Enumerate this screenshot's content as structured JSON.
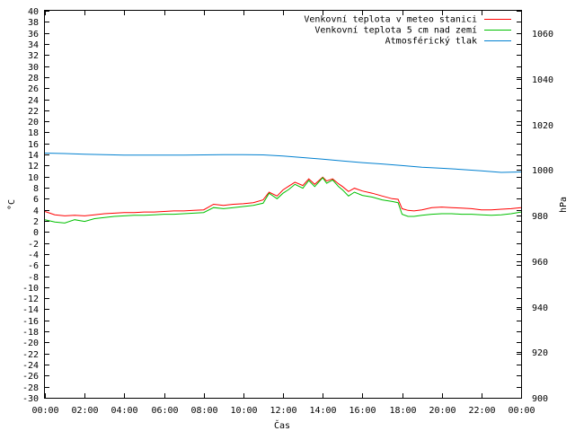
{
  "chart_data": {
    "type": "line",
    "xlabel": "Čas",
    "ylabel": "°C",
    "y2label": "hPa",
    "x_ticks": [
      "00:00",
      "02:00",
      "04:00",
      "06:00",
      "08:00",
      "10:00",
      "12:00",
      "14:00",
      "16:00",
      "18:00",
      "20:00",
      "22:00",
      "00:00"
    ],
    "xlim": [
      0,
      24
    ],
    "ylim": [
      -30,
      40
    ],
    "y2lim": [
      900,
      1070
    ],
    "y_ticks": [
      40,
      38,
      36,
      34,
      32,
      30,
      28,
      26,
      24,
      22,
      20,
      18,
      16,
      14,
      12,
      10,
      8,
      6,
      4,
      2,
      0,
      -2,
      -4,
      -6,
      -8,
      -10,
      -12,
      -14,
      -16,
      -18,
      -20,
      -22,
      -24,
      -26,
      -28,
      -30
    ],
    "y2_ticks": [
      1060,
      1040,
      1020,
      1000,
      980,
      960,
      940,
      920,
      900
    ],
    "legend_position": "top-right",
    "grid": false,
    "series": [
      {
        "name": "Venkovní teplota v meteo stanici",
        "axis": "left",
        "color": "#ff0000",
        "x": [
          0,
          0.5,
          1,
          1.5,
          2,
          2.5,
          3,
          3.5,
          4,
          4.5,
          5,
          5.5,
          6,
          6.5,
          7,
          7.5,
          8,
          8.5,
          9,
          9.5,
          10,
          10.5,
          11,
          11.3,
          11.7,
          12,
          12.3,
          12.6,
          13,
          13.3,
          13.6,
          14,
          14.2,
          14.5,
          14.8,
          15,
          15.3,
          15.6,
          16,
          16.5,
          17,
          17.5,
          17.8,
          18,
          18.3,
          18.6,
          19,
          19.5,
          20,
          20.5,
          21,
          21.5,
          22,
          22.5,
          23,
          23.5,
          24
        ],
        "y": [
          3.7,
          3.1,
          2.9,
          3,
          2.9,
          3.1,
          3.3,
          3.4,
          3.5,
          3.5,
          3.6,
          3.6,
          3.7,
          3.8,
          3.8,
          3.9,
          4.0,
          5.0,
          4.8,
          5.0,
          5.1,
          5.3,
          5.8,
          7.2,
          6.5,
          7.6,
          8.3,
          9.0,
          8.4,
          9.6,
          8.6,
          9.9,
          9.2,
          9.6,
          8.7,
          8.2,
          7.3,
          7.9,
          7.4,
          7.0,
          6.5,
          6.0,
          5.9,
          4.2,
          3.9,
          3.8,
          4.0,
          4.4,
          4.5,
          4.4,
          4.3,
          4.2,
          4.0,
          4.0,
          4.1,
          4.2,
          4.4
        ]
      },
      {
        "name": "Venkovní teplota 5 cm nad zemí",
        "axis": "left",
        "color": "#00c000",
        "x": [
          0,
          0.5,
          1,
          1.5,
          2,
          2.5,
          3,
          3.5,
          4,
          4.5,
          5,
          5.5,
          6,
          6.5,
          7,
          7.5,
          8,
          8.5,
          9,
          9.5,
          10,
          10.5,
          11,
          11.3,
          11.7,
          12,
          12.3,
          12.6,
          13,
          13.3,
          13.6,
          14,
          14.2,
          14.5,
          14.8,
          15,
          15.3,
          15.6,
          16,
          16.5,
          17,
          17.5,
          17.8,
          18,
          18.3,
          18.6,
          19,
          19.5,
          20,
          20.5,
          21,
          21.5,
          22,
          22.5,
          23,
          23.5,
          24
        ],
        "y": [
          2.2,
          1.8,
          1.6,
          2.2,
          1.9,
          2.4,
          2.6,
          2.8,
          2.9,
          3.0,
          3.0,
          3.1,
          3.2,
          3.2,
          3.3,
          3.4,
          3.5,
          4.4,
          4.2,
          4.4,
          4.6,
          4.8,
          5.2,
          7.0,
          6.0,
          7.0,
          7.7,
          8.6,
          7.9,
          9.3,
          8.2,
          9.8,
          8.8,
          9.4,
          8.2,
          7.6,
          6.5,
          7.2,
          6.6,
          6.3,
          5.8,
          5.5,
          5.3,
          3.2,
          2.8,
          2.8,
          3.0,
          3.2,
          3.3,
          3.3,
          3.2,
          3.2,
          3.1,
          3.0,
          3.1,
          3.3,
          3.6
        ]
      },
      {
        "name": "Atmosférický tlak",
        "axis": "right",
        "color": "#0080d0",
        "x": [
          0,
          1,
          2,
          3,
          4,
          5,
          6,
          7,
          8,
          9,
          10,
          11,
          12,
          13,
          14,
          15,
          16,
          17,
          18,
          19,
          20,
          21,
          22,
          23,
          24
        ],
        "y": [
          1007.5,
          1007.3,
          1007.0,
          1006.8,
          1006.6,
          1006.6,
          1006.6,
          1006.6,
          1006.7,
          1006.8,
          1006.8,
          1006.7,
          1006.2,
          1005.5,
          1004.8,
          1004.0,
          1003.3,
          1002.7,
          1002.0,
          1001.3,
          1000.8,
          1000.3,
          999.7,
          999.0,
          999.2
        ]
      }
    ]
  }
}
